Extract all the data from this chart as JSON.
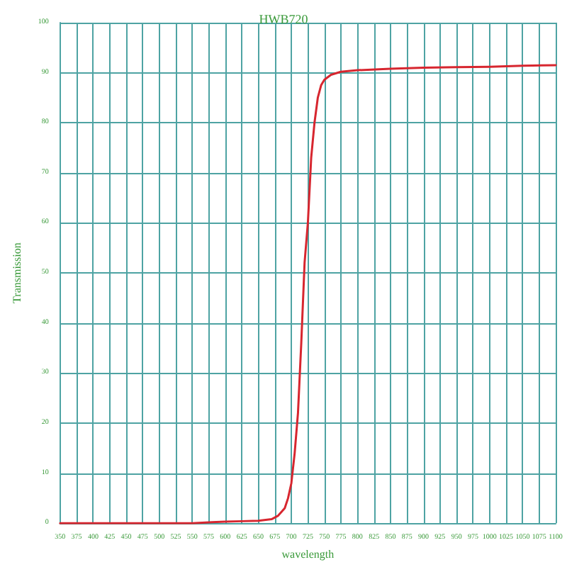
{
  "chart_data": {
    "type": "line",
    "title": "HWB720",
    "xlabel": "wavelength",
    "ylabel": "Transmission",
    "x": [
      350,
      400,
      450,
      500,
      550,
      580,
      600,
      625,
      650,
      670,
      680,
      690,
      695,
      700,
      705,
      710,
      715,
      720,
      725,
      730,
      735,
      740,
      745,
      750,
      760,
      775,
      800,
      850,
      900,
      950,
      1000,
      1050,
      1100
    ],
    "series": [
      {
        "color": "#d7262f",
        "values": [
          0,
          0,
          0,
          0,
          0,
          0.2,
          0.3,
          0.4,
          0.5,
          0.8,
          1.5,
          3,
          5,
          8,
          14,
          22,
          36,
          52,
          60,
          73,
          80,
          85,
          87.5,
          88.6,
          89.6,
          90.2,
          90.5,
          90.8,
          91,
          91.1,
          91.2,
          91.4,
          91.5
        ]
      }
    ],
    "xlim": [
      350,
      1100
    ],
    "xticks": [
      350,
      375,
      400,
      425,
      450,
      475,
      500,
      525,
      550,
      575,
      600,
      625,
      650,
      675,
      700,
      725,
      750,
      775,
      800,
      825,
      850,
      875,
      900,
      925,
      950,
      975,
      1000,
      1025,
      1050,
      1075,
      1100
    ],
    "ylim": [
      0,
      100
    ],
    "yticks": [
      0,
      10,
      20,
      30,
      40,
      50,
      60,
      70,
      80,
      90,
      100
    ],
    "grid": true,
    "marker": "none",
    "line_style": "solid"
  }
}
